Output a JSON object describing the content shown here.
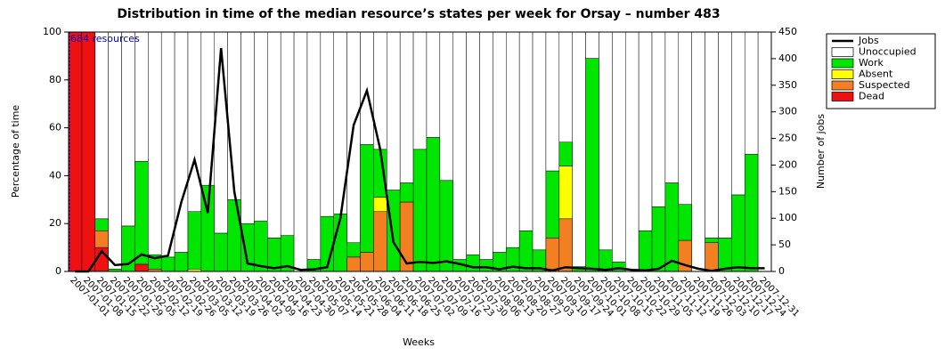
{
  "chart_data": {
    "type": "bar",
    "stacked": true,
    "title": "Distribution in time of the median resource’s states per week for Orsay – number 483",
    "x_label": "Weeks",
    "y_label": "Percentage of time",
    "y2_label": "Number of jobs",
    "annotation": "684 resources",
    "categories": [
      "2007-01-01",
      "2007-01-08",
      "2007-01-15",
      "2007-01-22",
      "2007-01-29",
      "2007-02-05",
      "2007-02-12",
      "2007-02-19",
      "2007-02-26",
      "2007-03-05",
      "2007-03-12",
      "2007-03-19",
      "2007-03-26",
      "2007-04-02",
      "2007-04-09",
      "2007-04-16",
      "2007-04-23",
      "2007-04-30",
      "2007-05-07",
      "2007-05-14",
      "2007-05-21",
      "2007-05-28",
      "2007-06-04",
      "2007-06-11",
      "2007-06-18",
      "2007-06-25",
      "2007-07-02",
      "2007-07-09",
      "2007-07-16",
      "2007-07-23",
      "2007-07-30",
      "2007-08-06",
      "2007-08-13",
      "2007-08-20",
      "2007-08-27",
      "2007-09-03",
      "2007-09-10",
      "2007-09-17",
      "2007-09-24",
      "2007-10-01",
      "2007-10-08",
      "2007-10-15",
      "2007-10-22",
      "2007-10-29",
      "2007-11-05",
      "2007-11-12",
      "2007-11-19",
      "2007-11-26",
      "2007-12-03",
      "2007-12-10",
      "2007-12-17",
      "2007-12-24",
      "2007-12-31"
    ],
    "series": [
      {
        "name": "Jobs",
        "type": "line",
        "axis": "y2",
        "color": "#000000",
        "values": [
          0,
          0,
          38,
          12,
          14,
          32,
          25,
          30,
          130,
          210,
          110,
          420,
          150,
          15,
          10,
          6,
          10,
          3,
          4,
          8,
          100,
          275,
          340,
          230,
          55,
          15,
          18,
          16,
          19,
          14,
          8,
          8,
          4,
          9,
          6,
          6,
          2,
          8,
          6,
          5,
          3,
          6,
          3,
          2,
          5,
          20,
          12,
          5,
          1,
          5,
          8,
          6,
          6
        ]
      },
      {
        "name": "Unoccupied",
        "color": "#ffffff",
        "values": [
          0,
          0,
          78,
          99,
          81,
          54,
          93,
          94,
          92,
          75,
          64,
          84,
          70,
          80,
          79,
          86,
          85,
          100,
          95,
          77,
          76,
          88,
          47,
          49,
          66,
          63,
          49,
          44,
          62,
          95,
          93,
          95,
          92,
          90,
          83,
          91,
          58,
          46,
          98,
          11,
          91,
          96,
          100,
          83,
          73,
          63,
          72,
          100,
          86,
          86,
          68,
          51,
          100
        ]
      },
      {
        "name": "Work",
        "color": "#00e600",
        "values": [
          0,
          0,
          5,
          1,
          19,
          43,
          6,
          6,
          8,
          24,
          36,
          16,
          30,
          20,
          21,
          14,
          15,
          0,
          5,
          23,
          24,
          6,
          45,
          20,
          34,
          8,
          51,
          56,
          38,
          5,
          7,
          5,
          8,
          10,
          17,
          9,
          28,
          10,
          2,
          89,
          9,
          4,
          0,
          17,
          27,
          37,
          15,
          0,
          2,
          14,
          32,
          49,
          0
        ]
      },
      {
        "name": "Absent",
        "color": "#ffff00",
        "values": [
          0,
          0,
          0,
          0,
          0,
          0,
          0,
          0,
          0,
          1,
          0,
          0,
          0,
          0,
          0,
          0,
          0,
          0,
          0,
          0,
          0,
          0,
          0,
          6,
          0,
          0,
          0,
          0,
          0,
          0,
          0,
          0,
          0,
          0,
          0,
          0,
          0,
          22,
          0,
          0,
          0,
          0,
          0,
          0,
          0,
          0,
          0,
          0,
          0,
          0,
          0,
          0,
          0
        ]
      },
      {
        "name": "Suspected",
        "color": "#f28022",
        "values": [
          0,
          0,
          7,
          0,
          0,
          0,
          1,
          0,
          0,
          0,
          0,
          0,
          0,
          0,
          0,
          0,
          0,
          0,
          0,
          0,
          0,
          6,
          8,
          25,
          0,
          29,
          0,
          0,
          0,
          0,
          0,
          0,
          0,
          0,
          0,
          0,
          14,
          22,
          0,
          0,
          0,
          0,
          0,
          0,
          0,
          0,
          13,
          0,
          12,
          0,
          0,
          0,
          0
        ]
      },
      {
        "name": "Dead",
        "color": "#ee1111",
        "values": [
          100,
          100,
          10,
          0,
          0,
          3,
          0,
          0,
          0,
          0,
          0,
          0,
          0,
          0,
          0,
          0,
          0,
          0,
          0,
          0,
          0,
          0,
          0,
          0,
          0,
          0,
          0,
          0,
          0,
          0,
          0,
          0,
          0,
          0,
          0,
          0,
          0,
          0,
          0,
          0,
          0,
          0,
          0,
          0,
          0,
          0,
          0,
          0,
          0,
          0,
          0,
          0,
          0
        ]
      }
    ],
    "ylim": [
      0,
      100
    ],
    "yticks": [
      0,
      20,
      40,
      60,
      80,
      100
    ],
    "y2lim": [
      0,
      450
    ],
    "y2ticks": [
      0,
      50,
      100,
      150,
      200,
      250,
      300,
      350,
      400,
      450
    ],
    "legend": "right"
  }
}
